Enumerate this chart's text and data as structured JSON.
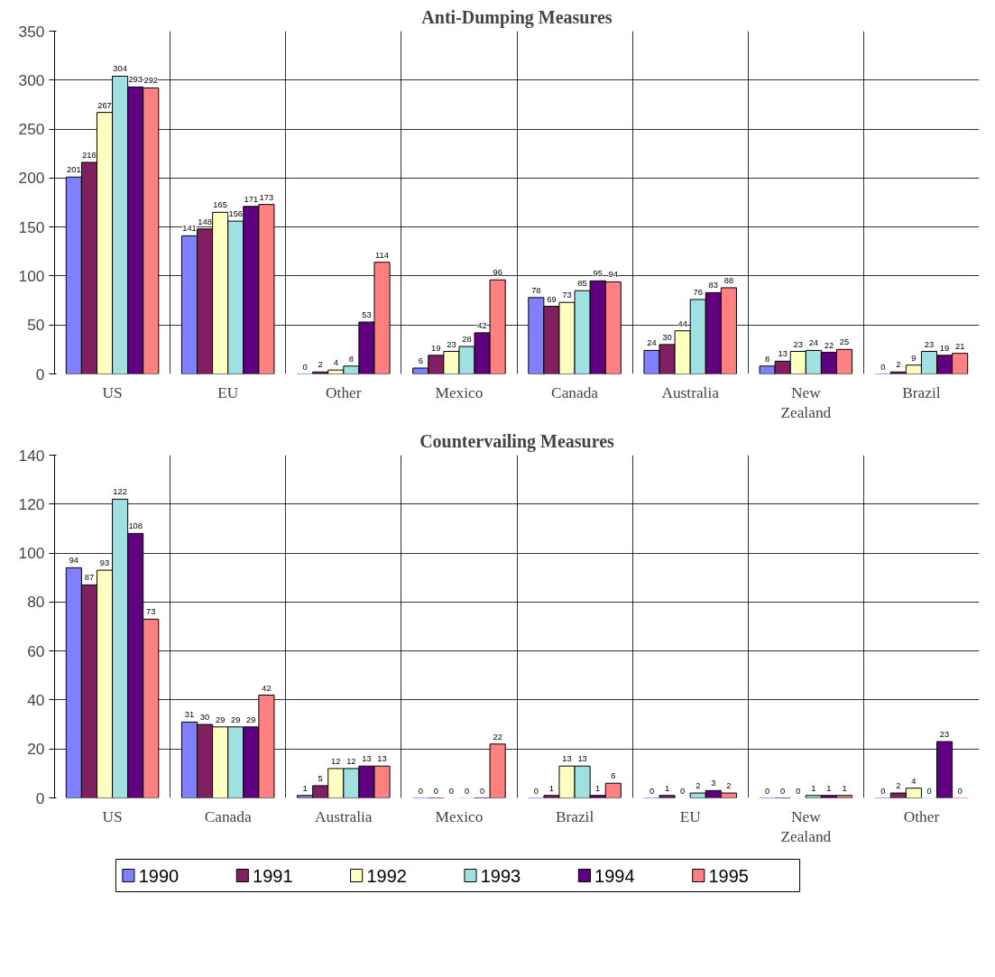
{
  "chart_data": [
    {
      "type": "bar",
      "title": "Anti-Dumping Measures",
      "categories": [
        "US",
        "EU",
        "Other",
        "Mexico",
        "Canada",
        "Australia",
        "New Zealand",
        "Brazil"
      ],
      "series": [
        {
          "color": "#8080ff",
          "values": [
            201,
            141,
            0,
            6,
            78,
            24,
            8,
            0
          ]
        },
        {
          "color": "#802060",
          "values": [
            216,
            148,
            2,
            19,
            69,
            30,
            13,
            2
          ]
        },
        {
          "color": "#ffffc0",
          "values": [
            267,
            165,
            4,
            23,
            73,
            44,
            23,
            9
          ]
        },
        {
          "color": "#a0e0e0",
          "values": [
            304,
            156,
            8,
            28,
            85,
            76,
            24,
            23
          ]
        },
        {
          "color": "#600080",
          "values": [
            293,
            171,
            53,
            42,
            95,
            83,
            22,
            19
          ]
        },
        {
          "color": "#ff8080",
          "values": [
            292,
            173,
            114,
            96,
            94,
            88,
            25,
            21
          ]
        }
      ],
      "ylim": [
        0,
        350
      ],
      "yticks": [
        0,
        50,
        100,
        150,
        200,
        250,
        300,
        350
      ],
      "grid": true,
      "data_labels": true,
      "legend": false
    },
    {
      "type": "bar",
      "title": "Countervailing Measures",
      "categories": [
        "US",
        "Canada",
        "Australia",
        "Mexico",
        "Brazil",
        "EU",
        "New Zealand",
        "Other"
      ],
      "series": [
        {
          "name": "1990",
          "color": "#8080ff",
          "values": [
            94,
            31,
            1,
            0,
            0,
            0,
            0,
            0
          ]
        },
        {
          "name": "1991",
          "color": "#802060",
          "values": [
            87,
            30,
            5,
            0,
            1,
            1,
            0,
            2
          ]
        },
        {
          "name": "1992",
          "color": "#ffffc0",
          "values": [
            93,
            29,
            12,
            0,
            13,
            0,
            0,
            4
          ]
        },
        {
          "name": "1993",
          "color": "#a0e0e0",
          "values": [
            122,
            29,
            12,
            0,
            13,
            2,
            1,
            0
          ]
        },
        {
          "name": "1994",
          "color": "#600080",
          "values": [
            108,
            29,
            13,
            0,
            1,
            3,
            1,
            23
          ]
        },
        {
          "name": "1995",
          "color": "#ff8080",
          "values": [
            73,
            42,
            13,
            22,
            6,
            2,
            1,
            0
          ]
        }
      ],
      "ylim": [
        0,
        140
      ],
      "yticks": [
        0,
        20,
        40,
        60,
        80,
        100,
        120,
        140
      ],
      "grid": true,
      "data_labels": true,
      "legend": "bottom"
    }
  ]
}
